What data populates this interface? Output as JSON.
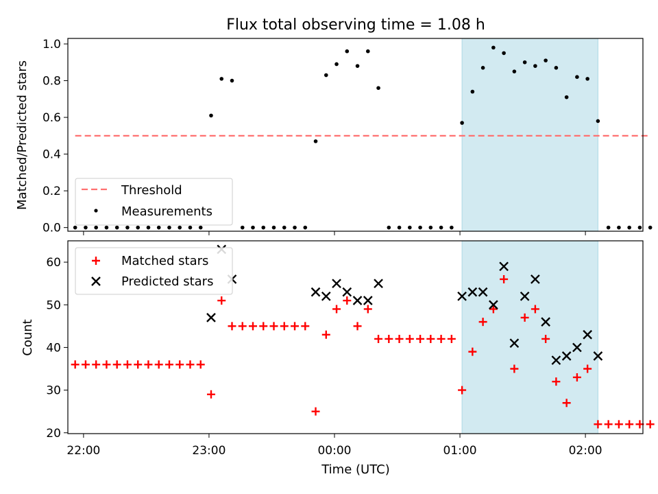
{
  "title": "Flux total observing time = 1.08 h",
  "xlabel": "Time (UTC)",
  "x_ticks": [
    "22:00",
    "23:00",
    "00:00",
    "01:00",
    "02:00"
  ],
  "highlight_span": [
    "01:01",
    "02:06"
  ],
  "colors": {
    "highlight": "#add8e6",
    "threshold": "#ff7070",
    "matched": "#ff0000",
    "predicted": "#000000",
    "measurement": "#000000"
  },
  "chart_data": [
    {
      "type": "scatter",
      "ylabel": "Matched/Predicted stars",
      "ylim": [
        0,
        1.03
      ],
      "y_ticks": [
        "0.0",
        "0.2",
        "0.4",
        "0.6",
        "0.8",
        "1.0"
      ],
      "legend": {
        "placement": "lower-left",
        "entries": [
          "Threshold",
          "Measurements"
        ]
      },
      "threshold": {
        "name": "Threshold",
        "y": 0.5,
        "x_start": "21:56",
        "x_end": "02:30"
      },
      "series": [
        {
          "name": "Measurements",
          "points": [
            [
              "21:56",
              0
            ],
            [
              "22:01",
              0
            ],
            [
              "22:06",
              0
            ],
            [
              "22:11",
              0
            ],
            [
              "22:16",
              0
            ],
            [
              "22:21",
              0
            ],
            [
              "22:26",
              0
            ],
            [
              "22:31",
              0
            ],
            [
              "22:36",
              0
            ],
            [
              "22:41",
              0
            ],
            [
              "22:46",
              0
            ],
            [
              "22:51",
              0
            ],
            [
              "22:56",
              0
            ],
            [
              "23:01",
              0.61
            ],
            [
              "23:06",
              0.81
            ],
            [
              "23:11",
              0.8
            ],
            [
              "23:16",
              0
            ],
            [
              "23:21",
              0
            ],
            [
              "23:26",
              0
            ],
            [
              "23:31",
              0
            ],
            [
              "23:36",
              0
            ],
            [
              "23:41",
              0
            ],
            [
              "23:46",
              0
            ],
            [
              "23:51",
              0.47
            ],
            [
              "23:56",
              0.83
            ],
            [
              "00:01",
              0.89
            ],
            [
              "00:06",
              0.96
            ],
            [
              "00:11",
              0.88
            ],
            [
              "00:16",
              0.96
            ],
            [
              "00:21",
              0.76
            ],
            [
              "00:26",
              0
            ],
            [
              "00:31",
              0
            ],
            [
              "00:36",
              0
            ],
            [
              "00:41",
              0
            ],
            [
              "00:46",
              0
            ],
            [
              "00:51",
              0
            ],
            [
              "00:56",
              0
            ],
            [
              "01:01",
              0.57
            ],
            [
              "01:06",
              0.74
            ],
            [
              "01:11",
              0.87
            ],
            [
              "01:16",
              0.98
            ],
            [
              "01:21",
              0.95
            ],
            [
              "01:26",
              0.85
            ],
            [
              "01:31",
              0.9
            ],
            [
              "01:36",
              0.88
            ],
            [
              "01:41",
              0.91
            ],
            [
              "01:46",
              0.87
            ],
            [
              "01:51",
              0.71
            ],
            [
              "01:56",
              0.82
            ],
            [
              "02:01",
              0.81
            ],
            [
              "02:06",
              0.58
            ],
            [
              "02:11",
              0
            ],
            [
              "02:16",
              0
            ],
            [
              "02:21",
              0
            ],
            [
              "02:26",
              0
            ],
            [
              "02:31",
              0
            ]
          ]
        }
      ]
    },
    {
      "type": "scatter",
      "ylabel": "Count",
      "ylim": [
        20,
        65
      ],
      "y_ticks": [
        "20",
        "30",
        "40",
        "50",
        "60"
      ],
      "legend": {
        "placement": "top-left",
        "entries": [
          "Matched stars",
          "Predicted stars"
        ]
      },
      "series": [
        {
          "name": "Matched stars",
          "points": [
            [
              "21:56",
              36
            ],
            [
              "22:01",
              36
            ],
            [
              "22:06",
              36
            ],
            [
              "22:11",
              36
            ],
            [
              "22:16",
              36
            ],
            [
              "22:21",
              36
            ],
            [
              "22:26",
              36
            ],
            [
              "22:31",
              36
            ],
            [
              "22:36",
              36
            ],
            [
              "22:41",
              36
            ],
            [
              "22:46",
              36
            ],
            [
              "22:51",
              36
            ],
            [
              "22:56",
              36
            ],
            [
              "23:01",
              29
            ],
            [
              "23:06",
              51
            ],
            [
              "23:11",
              45
            ],
            [
              "23:16",
              45
            ],
            [
              "23:21",
              45
            ],
            [
              "23:26",
              45
            ],
            [
              "23:31",
              45
            ],
            [
              "23:36",
              45
            ],
            [
              "23:41",
              45
            ],
            [
              "23:46",
              45
            ],
            [
              "23:51",
              25
            ],
            [
              "23:56",
              43
            ],
            [
              "00:01",
              49
            ],
            [
              "00:06",
              51
            ],
            [
              "00:11",
              45
            ],
            [
              "00:16",
              49
            ],
            [
              "00:21",
              42
            ],
            [
              "00:26",
              42
            ],
            [
              "00:31",
              42
            ],
            [
              "00:36",
              42
            ],
            [
              "00:41",
              42
            ],
            [
              "00:46",
              42
            ],
            [
              "00:51",
              42
            ],
            [
              "00:56",
              42
            ],
            [
              "01:01",
              30
            ],
            [
              "01:06",
              39
            ],
            [
              "01:11",
              46
            ],
            [
              "01:16",
              49
            ],
            [
              "01:21",
              56
            ],
            [
              "01:26",
              35
            ],
            [
              "01:31",
              47
            ],
            [
              "01:36",
              49
            ],
            [
              "01:41",
              42
            ],
            [
              "01:46",
              32
            ],
            [
              "01:51",
              27
            ],
            [
              "01:56",
              33
            ],
            [
              "02:01",
              35
            ],
            [
              "02:06",
              22
            ],
            [
              "02:11",
              22
            ],
            [
              "02:16",
              22
            ],
            [
              "02:21",
              22
            ],
            [
              "02:26",
              22
            ],
            [
              "02:31",
              22
            ]
          ]
        },
        {
          "name": "Predicted stars",
          "points": [
            [
              "23:01",
              47
            ],
            [
              "23:06",
              63
            ],
            [
              "23:11",
              56
            ],
            [
              "23:51",
              53
            ],
            [
              "23:56",
              52
            ],
            [
              "00:01",
              55
            ],
            [
              "00:06",
              53
            ],
            [
              "00:11",
              51
            ],
            [
              "00:16",
              51
            ],
            [
              "00:21",
              55
            ],
            [
              "01:01",
              52
            ],
            [
              "01:06",
              53
            ],
            [
              "01:11",
              53
            ],
            [
              "01:16",
              50
            ],
            [
              "01:21",
              59
            ],
            [
              "01:26",
              41
            ],
            [
              "01:31",
              52
            ],
            [
              "01:36",
              56
            ],
            [
              "01:41",
              46
            ],
            [
              "01:46",
              37
            ],
            [
              "01:51",
              38
            ],
            [
              "01:56",
              40
            ],
            [
              "02:01",
              43
            ],
            [
              "02:06",
              38
            ]
          ]
        }
      ]
    }
  ]
}
